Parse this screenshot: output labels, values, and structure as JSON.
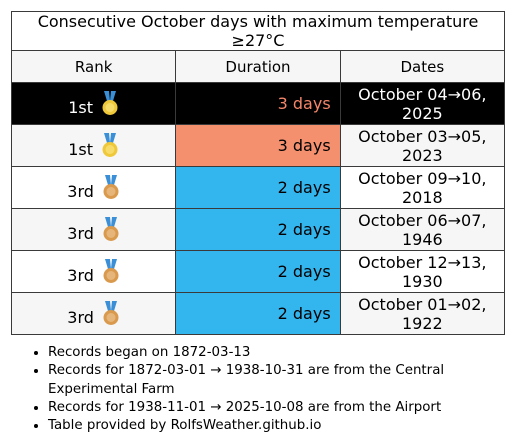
{
  "table": {
    "title": "Consecutive October days with maximum temperature ≥27°C",
    "headers": {
      "rank": "Rank",
      "duration": "Duration",
      "dates": "Dates"
    },
    "rows": [
      {
        "rank": "1st",
        "medal": "gold-medal-icon",
        "duration": "3 days",
        "dates": "October 04→06, 2025",
        "style": "current"
      },
      {
        "rank": "1st",
        "medal": "gold-medal-icon",
        "duration": "3 days",
        "dates": "October 03→05, 2023",
        "style": "orange"
      },
      {
        "rank": "3rd",
        "medal": "bronze-medal-icon",
        "duration": "2 days",
        "dates": "October 09→10, 2018",
        "style": "blue"
      },
      {
        "rank": "3rd",
        "medal": "bronze-medal-icon",
        "duration": "2 days",
        "dates": "October 06→07, 1946",
        "style": "blue"
      },
      {
        "rank": "3rd",
        "medal": "bronze-medal-icon",
        "duration": "2 days",
        "dates": "October 12→13, 1930",
        "style": "blue"
      },
      {
        "rank": "3rd",
        "medal": "bronze-medal-icon",
        "duration": "2 days",
        "dates": "October 01→02, 1922",
        "style": "blue"
      }
    ]
  },
  "notes": [
    "Records began on 1872-03-13",
    "Records for 1872-03-01 → 1938-10-31 are from the Central Experimental Farm",
    "Records for 1938-11-01 → 2025-10-08 are from the Airport",
    "Table provided by RolfsWeather.github.io"
  ],
  "colors": {
    "current_row_bg": "#000000",
    "current_duration_text": "#f4866a",
    "orange_fill": "#f4906e",
    "blue_fill": "#33b5ee",
    "gold_medal": "#f0c93a",
    "bronze_medal": "#d99a4e",
    "ribbon": "#3a8fd6"
  }
}
